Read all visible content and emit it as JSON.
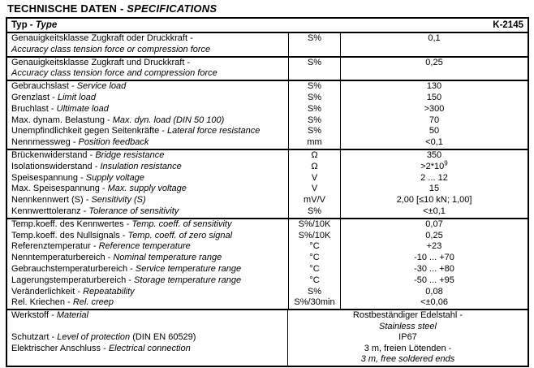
{
  "title": {
    "de": "TECHNISCHE DATEN -",
    "en": "SPECIFICATIONS"
  },
  "table": {
    "header": {
      "label_de": "Typ -",
      "label_en": "Type",
      "value": "K-2145"
    },
    "sections": [
      {
        "rows": [
          {
            "de": "Genauigkeitsklasse Zugkraft oder Druckkraft -",
            "en": "Accuracy class tension force or compression force",
            "two_line": true,
            "unit": "S%",
            "value": "0,1"
          }
        ]
      },
      {
        "rows": [
          {
            "de": "Genauigkeitsklasse Zugkraft und Druckkraft -",
            "en": "Accuracy class tension force and compression force",
            "two_line": true,
            "unit": "S%",
            "value": "0,25"
          }
        ]
      },
      {
        "rows": [
          {
            "de": "Gebrauchslast -",
            "en": "Service load",
            "unit": "S%",
            "value": "130"
          },
          {
            "de": "Grenzlast -",
            "en": "Limit load",
            "unit": "S%",
            "value": "150"
          },
          {
            "de": "Bruchlast -",
            "en": "Ultimate load",
            "unit": "S%",
            "value": ">300"
          },
          {
            "de": "Max. dynam. Belastung -",
            "en": "Max. dyn. load (DIN 50 100)",
            "unit": "S%",
            "value": "70"
          },
          {
            "de": "Unempfindlichkeit gegen Seitenkräfte -",
            "en": "Lateral force resistance",
            "unit": "S%",
            "value": "50"
          },
          {
            "de": "Nennmessweg -",
            "en": "Position feedback",
            "unit": "mm",
            "value": "<0,1"
          }
        ]
      },
      {
        "rows": [
          {
            "de": "Brückenwiderstand -",
            "en": "Bridge resistance",
            "unit": "Ω",
            "value": "350"
          },
          {
            "de": "Isolationswiderstand -",
            "en": "Insulation resistance",
            "unit": "Ω",
            "value": ">2*10",
            "value_sup": "9"
          },
          {
            "de": "Speisespannung -",
            "en": "Supply voltage",
            "unit": "V",
            "value": "2 ... 12"
          },
          {
            "de": "Max. Speisespannung -",
            "en": "Max. supply voltage",
            "unit": "V",
            "value": "15"
          },
          {
            "de": "Nennkennwert (S) -",
            "en": "Sensitivity (S)",
            "unit": "mV/V",
            "value": "2,00 [≤10 kN; 1,00]"
          },
          {
            "de": "Kennwerttoleranz -",
            "en": "Tolerance of sensitivity",
            "unit": "S%",
            "value": "<±0,1"
          }
        ]
      },
      {
        "rows": [
          {
            "de": "Temp.koeff. des Kennwertes -",
            "en": "Temp. coeff. of sensitivity",
            "unit": "S%/10K",
            "value": "0,07"
          },
          {
            "de": "Temp.koeff. des Nullsignals -",
            "en": "Temp. coeff. of zero signal",
            "unit": "S%/10K",
            "value": "0,25"
          },
          {
            "de": "Referenztemperatur -",
            "en": "Reference temperature",
            "unit": "°C",
            "value": "+23"
          },
          {
            "de": "Nenntemperaturbereich -",
            "en": "Nominal temperature range",
            "unit": "°C",
            "value": "-10 ... +70"
          },
          {
            "de": "Gebrauchstemperaturbereich -",
            "en": "Service temperature range",
            "unit": "°C",
            "value": "-30 ... +80"
          },
          {
            "de": "Lagerungstemperaturbereich -",
            "en": "Storage temperature range",
            "unit": "°C",
            "value": "-50 ... +95"
          },
          {
            "de": "Veränderlichkeit -",
            "en": "Repeatability",
            "unit": "S%",
            "value": "0,08"
          },
          {
            "de": "Rel. Kriechen -",
            "en": "Rel. creep",
            "unit": "S%/30min",
            "value": "<±0,06"
          }
        ]
      }
    ],
    "material_section": {
      "left_lines": [
        {
          "de": "Werkstoff -",
          "en": "Material",
          "suffix": ""
        },
        {
          "de": "",
          "en": "",
          "suffix": ""
        },
        {
          "de": "Schutzart -",
          "en": "Level of protection",
          "suffix": "(DIN EN 60529)"
        },
        {
          "de": "Elektrischer Anschluss -",
          "en": "Electrical connection",
          "suffix": ""
        }
      ],
      "right_lines": [
        {
          "text": "Rostbeständiger Edelstahl -",
          "italic": false
        },
        {
          "text": "Stainless steel",
          "italic": true
        },
        {
          "text": "IP67",
          "italic": false
        },
        {
          "text": "3 m, freien Lötenden -",
          "italic": false
        },
        {
          "text": "3 m, free soldered ends",
          "italic": true
        }
      ]
    }
  }
}
